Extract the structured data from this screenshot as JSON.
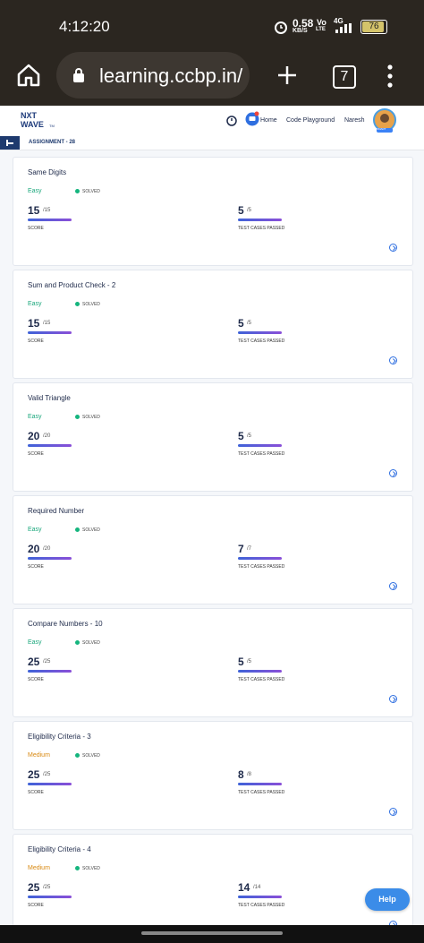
{
  "status_bar": {
    "time": "4:12:20",
    "speed": "0.58",
    "speed_unit": "KB/S",
    "vo": "Vo",
    "lte": "LTE",
    "network": "4G",
    "battery": "76"
  },
  "browser": {
    "url": "learning.ccbp.in/",
    "tabs": "7"
  },
  "header": {
    "logo_top": "NXT",
    "logo_bottom": "WAVE",
    "logo_mark": "TM",
    "nav": [
      "Home",
      "Code Playground",
      "Naresh"
    ],
    "avatar_tag": "SMART"
  },
  "breadcrumb": "ASSIGNMENT - 28",
  "cards": [
    {
      "title": "Same Digits",
      "difficulty": "Easy",
      "status": "SOLVED",
      "score": 15,
      "score_total": "/15",
      "score_label": "SCORE",
      "tests": 5,
      "tests_total": "/5",
      "tests_label": "TEST CASES PASSED"
    },
    {
      "title": "Sum and Product Check - 2",
      "difficulty": "Easy",
      "status": "SOLVED",
      "score": 15,
      "score_total": "/15",
      "score_label": "SCORE",
      "tests": 5,
      "tests_total": "/5",
      "tests_label": "TEST CASES PASSED"
    },
    {
      "title": "Valid Triangle",
      "difficulty": "Easy",
      "status": "SOLVED",
      "score": 20,
      "score_total": "/20",
      "score_label": "SCORE",
      "tests": 5,
      "tests_total": "/5",
      "tests_label": "TEST CASES PASSED"
    },
    {
      "title": "Required Number",
      "difficulty": "Easy",
      "status": "SOLVED",
      "score": 20,
      "score_total": "/20",
      "score_label": "SCORE",
      "tests": 7,
      "tests_total": "/7",
      "tests_label": "TEST CASES PASSED"
    },
    {
      "title": "Compare Numbers - 10",
      "difficulty": "Easy",
      "status": "SOLVED",
      "score": 25,
      "score_total": "/25",
      "score_label": "SCORE",
      "tests": 5,
      "tests_total": "/5",
      "tests_label": "TEST CASES PASSED"
    },
    {
      "title": "Eligibility Criteria - 3",
      "difficulty": "Medium",
      "status": "SOLVED",
      "score": 25,
      "score_total": "/25",
      "score_label": "SCORE",
      "tests": 8,
      "tests_total": "/8",
      "tests_label": "TEST CASES PASSED"
    },
    {
      "title": "Eligibility Criteria - 4",
      "difficulty": "Medium",
      "status": "SOLVED",
      "score": 25,
      "score_total": "/25",
      "score_label": "SCORE",
      "tests": 14,
      "tests_total": "/14",
      "tests_label": "TEST CASES PASSED"
    }
  ],
  "help": "Help"
}
